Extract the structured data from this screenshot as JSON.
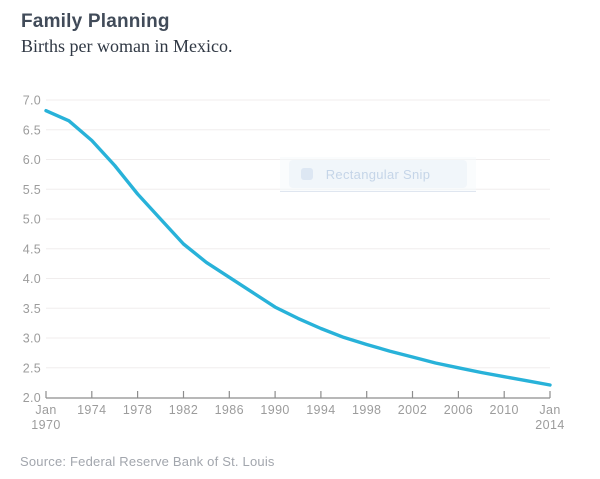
{
  "chart_data": {
    "type": "line",
    "title": "Family Planning",
    "subtitle": "Births per woman in Mexico.",
    "source": "Source: Federal Reserve Bank of St. Louis",
    "line_color": "#28b2d9",
    "grid": "horizontal",
    "legend": "none",
    "xlim": [
      1970,
      2014
    ],
    "ylim": [
      2.0,
      7.0
    ],
    "x": [
      1970,
      1972,
      1974,
      1976,
      1978,
      1980,
      1982,
      1984,
      1986,
      1988,
      1990,
      1992,
      1994,
      1996,
      1998,
      2000,
      2002,
      2004,
      2006,
      2008,
      2010,
      2012,
      2014
    ],
    "values": [
      6.82,
      6.65,
      6.32,
      5.9,
      5.42,
      5.0,
      4.58,
      4.27,
      4.02,
      3.77,
      3.52,
      3.33,
      3.16,
      3.01,
      2.89,
      2.78,
      2.68,
      2.58,
      2.5,
      2.42,
      2.35,
      2.28,
      2.21
    ],
    "yticks": [
      {
        "value": 7.0,
        "label": "7.0"
      },
      {
        "value": 6.5,
        "label": "6.5"
      },
      {
        "value": 6.0,
        "label": "6.0"
      },
      {
        "value": 5.5,
        "label": "5.5"
      },
      {
        "value": 5.0,
        "label": "5.0"
      },
      {
        "value": 4.5,
        "label": "4.5"
      },
      {
        "value": 4.0,
        "label": "4.0"
      },
      {
        "value": 3.5,
        "label": "3.5"
      },
      {
        "value": 3.0,
        "label": "3.0"
      },
      {
        "value": 2.5,
        "label": "2.5"
      },
      {
        "value": 2.0,
        "label": "2.0"
      }
    ],
    "xticks": [
      {
        "value": 1970,
        "lines": [
          "Jan",
          "1970"
        ]
      },
      {
        "value": 1974,
        "lines": [
          "1974"
        ]
      },
      {
        "value": 1978,
        "lines": [
          "1978"
        ]
      },
      {
        "value": 1982,
        "lines": [
          "1982"
        ]
      },
      {
        "value": 1986,
        "lines": [
          "1986"
        ]
      },
      {
        "value": 1990,
        "lines": [
          "1990"
        ]
      },
      {
        "value": 1994,
        "lines": [
          "1994"
        ]
      },
      {
        "value": 1998,
        "lines": [
          "1998"
        ]
      },
      {
        "value": 2002,
        "lines": [
          "2002"
        ]
      },
      {
        "value": 2006,
        "lines": [
          "2006"
        ]
      },
      {
        "value": 2010,
        "lines": [
          "2010"
        ]
      },
      {
        "value": 2014,
        "lines": [
          "Jan",
          "2014"
        ]
      }
    ]
  },
  "overlay": {
    "label": "Rectangular Snip",
    "icon": "snip-icon"
  }
}
